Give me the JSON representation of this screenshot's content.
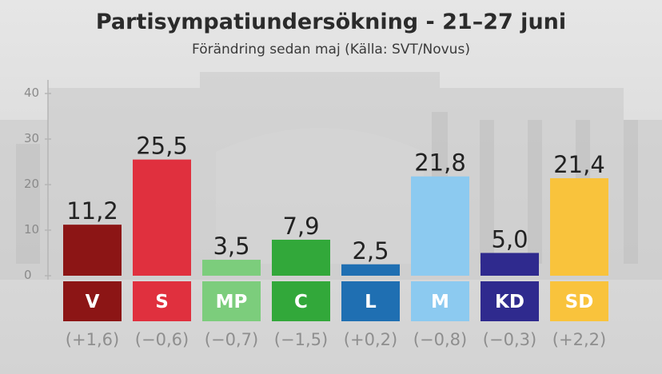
{
  "title": "Partisympatiundersökning - 21–27 juni",
  "subtitle": "Förändring sedan maj (Källa: SVT/Novus)",
  "chart_data": {
    "type": "bar",
    "title": "Partisympatiundersökning - 21–27 juni",
    "subtitle": "Förändring sedan maj (Källa: SVT/Novus)",
    "categories": [
      "V",
      "S",
      "MP",
      "C",
      "L",
      "M",
      "KD",
      "SD"
    ],
    "values": [
      11.2,
      25.5,
      3.5,
      7.9,
      2.5,
      21.8,
      5.0,
      21.4
    ],
    "value_labels": [
      "11,2",
      "25,5",
      "3,5",
      "7,9",
      "2,5",
      "21,8",
      "5,0",
      "21,4"
    ],
    "changes": [
      "(+1,6)",
      "(−0,6)",
      "(−0,7)",
      "(−1,5)",
      "(+0,2)",
      "(−0,8)",
      "(−0,3)",
      "(+2,2)"
    ],
    "colors": [
      "#8c1515",
      "#e0303e",
      "#7ccd7c",
      "#32a83a",
      "#1f6fb2",
      "#8ccaf0",
      "#2f2a8e",
      "#f9c33c"
    ],
    "yticks": [
      0,
      10,
      20,
      30,
      40
    ],
    "ylim": [
      0,
      40
    ],
    "grid": false,
    "legend": "none"
  }
}
